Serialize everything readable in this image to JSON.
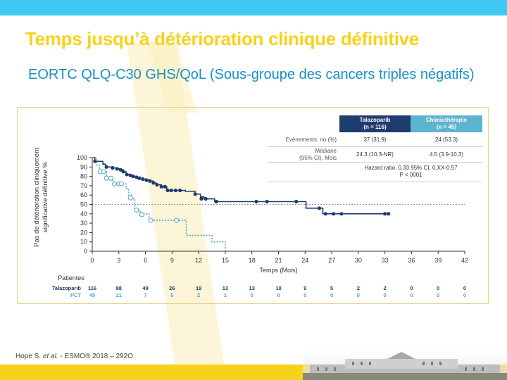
{
  "title": "Temps jusqu’à détérioration clinique définitive",
  "subtitle": "EORTC QLQ-C30 GHS/QoL (Sous-groupe des cancers triples négatifs)",
  "citation": {
    "authors": "Hope S. ",
    "etal": "et al.",
    "source": " - ESMO® 2018 – 292O"
  },
  "table": {
    "headers": [
      {
        "line1": "Talazoparib",
        "line2": "(n = 116)"
      },
      {
        "line1": "Chimiothérapie",
        "line2": "(n = 45)"
      }
    ],
    "events": {
      "label": "Evènements, no (%)",
      "talazoparib": "37 (31.9)",
      "chemo": "24 (53.3)"
    },
    "median": {
      "label1": "Médiane",
      "label2": "(95% CI). Mois",
      "talazoparib": "24.3 (10.3-NR)",
      "chemo": "4.5 (3.9-10.3)"
    },
    "hazard": {
      "line1": "Hazard ratio. 0.33 95% CI, 0.XX-0.57",
      "line2": "P < 0001"
    }
  },
  "colors": {
    "talazoparib": "#1f3c6e",
    "chemo": "#4fa8c4",
    "title": "#f7d21c",
    "subtitle": "#1a8fc7"
  },
  "chart_data": {
    "type": "line",
    "ylabel": [
      "Pas de détérioration cliniquement",
      "significative définitive %"
    ],
    "xlabel": "Temps (Mois)",
    "xlim": [
      0,
      42
    ],
    "ylim": [
      0,
      100
    ],
    "xticks": [
      0,
      3,
      6,
      9,
      12,
      15,
      18,
      21,
      24,
      27,
      30,
      33,
      36,
      39,
      42
    ],
    "yticks": [
      0,
      10,
      20,
      30,
      40,
      50,
      60,
      70,
      80,
      90,
      100
    ],
    "reference_line_y": 50,
    "series": [
      {
        "name": "Talazoparib",
        "style": "solid",
        "steps": [
          [
            0,
            100
          ],
          [
            0.3,
            96
          ],
          [
            1.2,
            93
          ],
          [
            1.5,
            90
          ],
          [
            2.2,
            89
          ],
          [
            2.8,
            88
          ],
          [
            3.2,
            87
          ],
          [
            3.5,
            85
          ],
          [
            3.8,
            82
          ],
          [
            4.2,
            81
          ],
          [
            4.6,
            80
          ],
          [
            5,
            79
          ],
          [
            5.4,
            78
          ],
          [
            5.8,
            77
          ],
          [
            6.2,
            76
          ],
          [
            6.6,
            75
          ],
          [
            6.9,
            73
          ],
          [
            7.2,
            71
          ],
          [
            7.8,
            69
          ],
          [
            8.4,
            65
          ],
          [
            9.6,
            65
          ],
          [
            10.5,
            64
          ],
          [
            11.6,
            61
          ],
          [
            12.2,
            58
          ],
          [
            12.6,
            56
          ],
          [
            13.5,
            56
          ],
          [
            13.8,
            53
          ],
          [
            24,
            53
          ],
          [
            24.1,
            46
          ],
          [
            25.5,
            46
          ],
          [
            26,
            40
          ],
          [
            33.5,
            40
          ]
        ],
        "censored": [
          [
            0.3,
            96
          ],
          [
            1.6,
            90
          ],
          [
            2.3,
            89
          ],
          [
            2.8,
            88
          ],
          [
            3.2,
            87
          ],
          [
            3.5,
            85
          ],
          [
            3.9,
            82
          ],
          [
            4.3,
            81
          ],
          [
            4.6,
            80
          ],
          [
            5,
            79
          ],
          [
            5.3,
            78
          ],
          [
            5.7,
            77
          ],
          [
            6.1,
            76
          ],
          [
            6.5,
            75
          ],
          [
            6.9,
            73
          ],
          [
            7.3,
            71
          ],
          [
            7.8,
            69
          ],
          [
            8.2,
            69
          ],
          [
            8.5,
            65
          ],
          [
            8.9,
            65
          ],
          [
            9.4,
            65
          ],
          [
            9.9,
            65
          ],
          [
            11.6,
            61
          ],
          [
            12.3,
            56
          ],
          [
            12.8,
            56
          ],
          [
            14,
            53
          ],
          [
            18.5,
            53
          ],
          [
            19.7,
            53
          ],
          [
            23,
            53
          ],
          [
            25.6,
            46
          ],
          [
            26.3,
            40
          ],
          [
            27.2,
            40
          ],
          [
            28.1,
            40
          ],
          [
            33,
            40
          ],
          [
            33.4,
            40
          ]
        ]
      },
      {
        "name": "PCT",
        "style": "dotted",
        "steps": [
          [
            0,
            100
          ],
          [
            0.5,
            92
          ],
          [
            0.8,
            87
          ],
          [
            1,
            85
          ],
          [
            1.6,
            78
          ],
          [
            2,
            76
          ],
          [
            2.4,
            72
          ],
          [
            3.3,
            72
          ],
          [
            3.8,
            67
          ],
          [
            4.1,
            60
          ],
          [
            4.4,
            56
          ],
          [
            4.8,
            44
          ],
          [
            5.4,
            40
          ],
          [
            6.4,
            33
          ],
          [
            10.3,
            33
          ],
          [
            10.6,
            17
          ],
          [
            13.1,
            17
          ],
          [
            13.5,
            10
          ],
          [
            15,
            10
          ],
          [
            15,
            0
          ]
        ],
        "censored": [
          [
            0.9,
            85
          ],
          [
            1.3,
            85
          ],
          [
            1.6,
            78
          ],
          [
            2.1,
            78
          ],
          [
            2.5,
            72
          ],
          [
            3,
            72
          ],
          [
            3.3,
            72
          ],
          [
            4.3,
            57
          ],
          [
            5,
            44
          ],
          [
            5.6,
            39
          ],
          [
            6.6,
            33
          ],
          [
            9.5,
            33
          ]
        ]
      }
    ]
  },
  "risk_table": {
    "header": "Patientes",
    "rows": [
      {
        "label": "Talazoparib",
        "values": [
          "116",
          "88",
          "49",
          "26",
          "19",
          "13",
          "13",
          "10",
          "9",
          "5",
          "2",
          "2",
          "0",
          "0",
          "0"
        ]
      },
      {
        "label": "PCT",
        "values": [
          "45",
          "21",
          "7",
          "5",
          "2",
          "1",
          "0",
          "0",
          "0",
          "0",
          "0",
          "0",
          "0",
          "0",
          "0"
        ]
      }
    ]
  }
}
